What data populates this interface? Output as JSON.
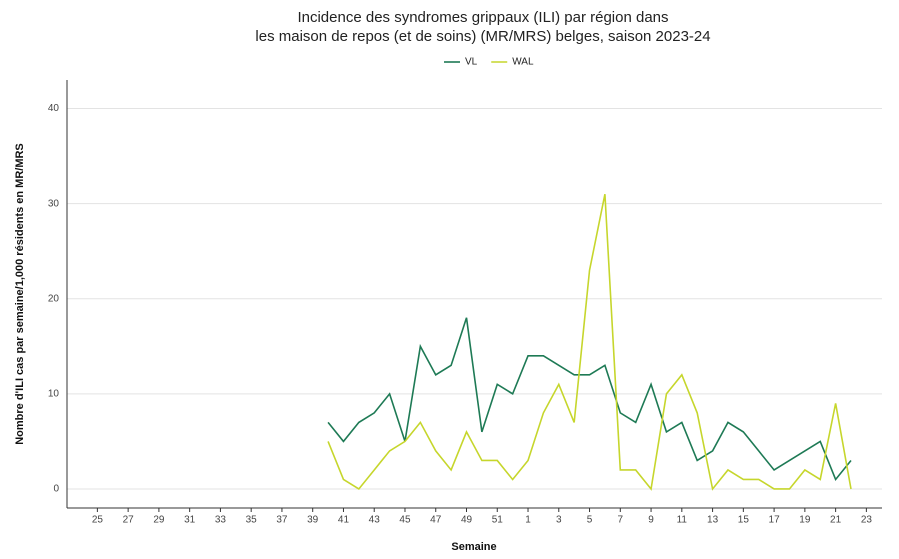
{
  "chart_data": {
    "type": "line",
    "title": "Incidence des syndromes grippaux (ILI) par région dans",
    "subtitle": "les maison de repos (et de soins) (MR/MRS) belges, saison 2023-24",
    "x_label": "Semaine",
    "y_label": "Nombre d'ILI cas par semaine/1,000 résidents en MR/MRS",
    "categories": [
      null,
      "25",
      null,
      "27",
      null,
      "29",
      null,
      "31",
      null,
      "33",
      null,
      "35",
      null,
      "37",
      null,
      "39",
      null,
      "41",
      null,
      "43",
      null,
      "45",
      null,
      "47",
      null,
      "49",
      null,
      "51",
      null,
      "1",
      null,
      "3",
      null,
      "5",
      null,
      "7",
      null,
      "9",
      null,
      "11",
      null,
      "13",
      null,
      "15",
      null,
      "17",
      null,
      "19",
      null,
      "21",
      null,
      "23"
    ],
    "series": [
      {
        "name": "VL",
        "color": "#1e7a55",
        "values": [
          null,
          null,
          null,
          null,
          null,
          null,
          null,
          null,
          null,
          null,
          null,
          null,
          null,
          null,
          null,
          null,
          7,
          5,
          7,
          8,
          10,
          5,
          15,
          12,
          13,
          18,
          6,
          11,
          10,
          14,
          14,
          13,
          12,
          12,
          13,
          8,
          7,
          11,
          6,
          7,
          3,
          4,
          7,
          6,
          4,
          2,
          3,
          4,
          5,
          1,
          3,
          null
        ]
      },
      {
        "name": "WAL",
        "color": "#c6d62c",
        "values": [
          null,
          null,
          null,
          null,
          null,
          null,
          null,
          null,
          null,
          null,
          null,
          null,
          null,
          null,
          null,
          null,
          5,
          1,
          0,
          2,
          4,
          5,
          7,
          4,
          2,
          6,
          3,
          3,
          1,
          3,
          8,
          11,
          7,
          23,
          31,
          2,
          2,
          0,
          10,
          12,
          8,
          0,
          2,
          1,
          1,
          0,
          0,
          2,
          1,
          9,
          0,
          null
        ]
      }
    ],
    "ylim": [
      -2,
      43
    ],
    "yticks": [
      0,
      10,
      20,
      30,
      40
    ],
    "grid": true,
    "legend": "top"
  }
}
